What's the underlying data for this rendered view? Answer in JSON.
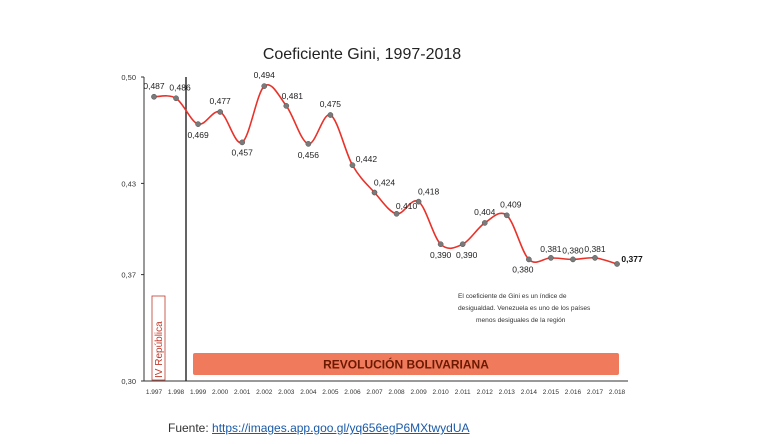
{
  "chart_data": {
    "type": "line",
    "title": "Coeficiente Gini, 1997-2018",
    "x": [
      "1.997",
      "1.998",
      "1.999",
      "2.000",
      "2.001",
      "2.002",
      "2.003",
      "2.004",
      "2.005",
      "2.006",
      "2.007",
      "2.008",
      "2.009",
      "2.010",
      "2.011",
      "2.012",
      "2.013",
      "2.014",
      "2.015",
      "2.016",
      "2.017",
      "2.018"
    ],
    "values": [
      0.487,
      0.486,
      0.469,
      0.477,
      0.457,
      0.494,
      0.481,
      0.456,
      0.475,
      0.442,
      0.424,
      0.41,
      0.418,
      0.39,
      0.39,
      0.404,
      0.409,
      0.38,
      0.381,
      0.38,
      0.381,
      0.377
    ],
    "point_labels": [
      "0,487",
      "0,486",
      "0,469",
      "0,477",
      "0,457",
      "0,494",
      "0,481",
      "0,456",
      "0,475",
      "0,442",
      "0,424",
      "0,410",
      "0,418",
      "0,390",
      "0,390",
      "0,404",
      "0,409",
      "0,380",
      "0,381",
      "0,380",
      "0,381",
      "0,377"
    ],
    "yticks": [
      0.5,
      0.43,
      0.37,
      0.3
    ],
    "ytick_labels": [
      "0,50",
      "0,43",
      "0,37",
      "0,30"
    ],
    "ylim": [
      0.3,
      0.5
    ],
    "line_color": "#e8322a",
    "marker_color": "#7a7a7a",
    "annotations": {
      "period_1": "IV República",
      "period_2": "REVOLUCIÓN BOLIVARIANA",
      "note_lines": [
        "El coeficiente de Gini es un índice de",
        "desigualdad. Venezuela es uno de los países",
        "menos desiguales de la región"
      ]
    },
    "band_color": "#f07a5c"
  },
  "source": {
    "prefix": "Fuente: ",
    "link_text": "https://images.app.goo.gl/yq656egP6MXtwydUA"
  }
}
